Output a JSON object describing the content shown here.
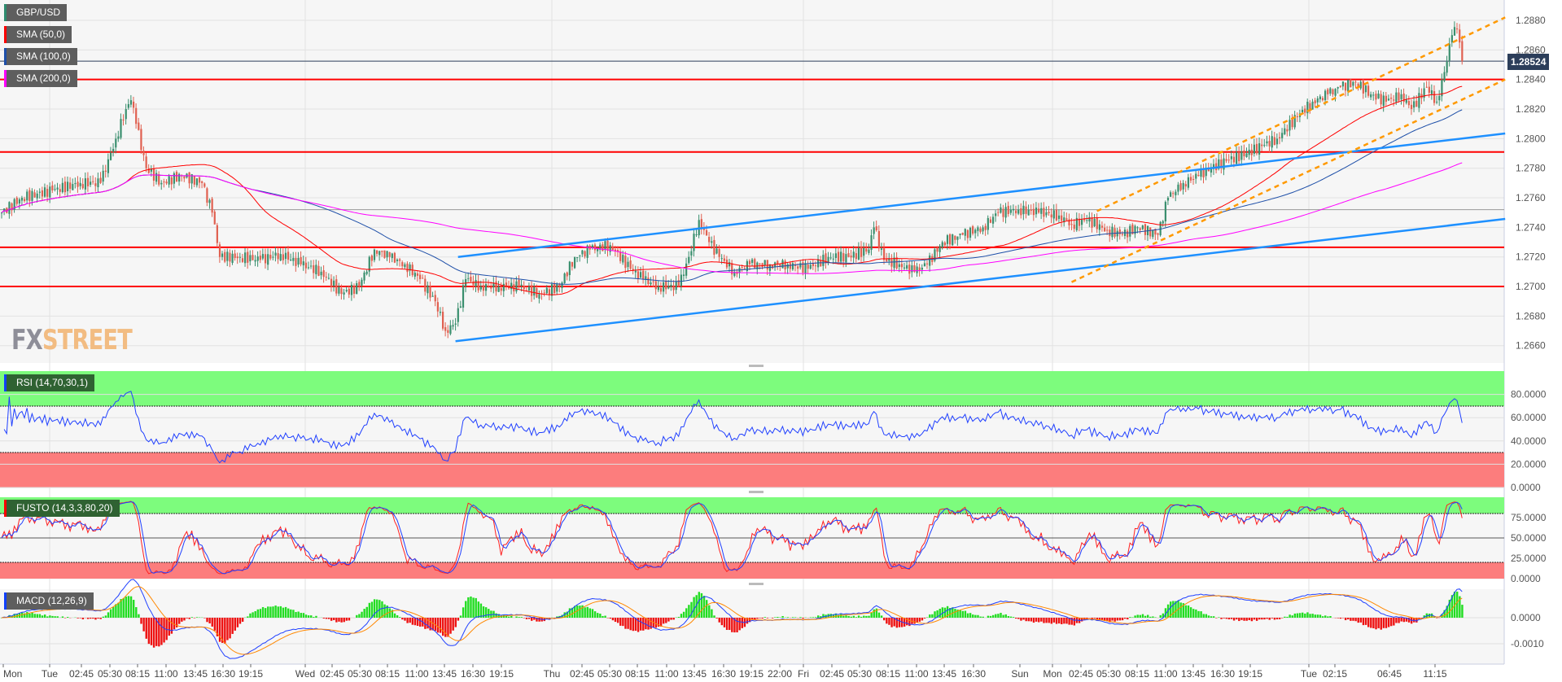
{
  "instrument": {
    "label": "GBP/USD",
    "color": "#2e8b6e"
  },
  "overlays": [
    {
      "label": "SMA (50,0)",
      "period": 50,
      "color": "#ff0000"
    },
    {
      "label": "SMA (100,0)",
      "period": 100,
      "color": "#1e4fa8"
    },
    {
      "label": "SMA (200,0)",
      "period": 200,
      "color": "#ff00ff"
    }
  ],
  "current_price": "1.28524",
  "watermark": {
    "part1": "FX",
    "part2": "STREET"
  },
  "panels": {
    "rsi": {
      "label": "RSI (14,70,30,1)",
      "ticks": [
        "80.0000",
        "60.0000",
        "40.0000",
        "20.0000",
        "0.0000"
      ]
    },
    "fusto": {
      "label": "FUSTO (14,3,3,80,20)",
      "ticks": [
        "75.0000",
        "50.0000",
        "25.0000",
        "0.0000"
      ]
    },
    "macd": {
      "label": "MACD (12,26,9)",
      "ticks": [
        "0.0000",
        "-0.0010"
      ]
    }
  },
  "chart_data": {
    "type": "candlestick",
    "title": "GBP/USD",
    "x_unit": "15-minute bar index",
    "ylim": [
      1.265,
      1.289
    ],
    "y_ticks": [
      "1.2880",
      "1.2860",
      "1.2840",
      "1.2820",
      "1.2800",
      "1.2780",
      "1.2760",
      "1.2740",
      "1.2720",
      "1.2700",
      "1.2680",
      "1.2660"
    ],
    "x_ticks": [
      "Mon",
      "Tue",
      "02:45",
      "05:30",
      "08:15",
      "11:00",
      "13:45",
      "16:30",
      "19:15",
      "Wed",
      "02:45",
      "05:30",
      "08:15",
      "11:00",
      "13:45",
      "16:30",
      "19:15",
      "Thu",
      "02:45",
      "05:30",
      "08:15",
      "11:00",
      "13:45",
      "16:30",
      "19:15",
      "22:00",
      "Fri",
      "02:45",
      "05:30",
      "08:15",
      "11:00",
      "13:45",
      "16:30",
      "Sun",
      "Mon",
      "02:45",
      "05:30",
      "08:15",
      "11:00",
      "13:45",
      "16:30",
      "19:15",
      "Tue",
      "02:15",
      "06:45",
      "11:15"
    ],
    "close_points": [
      [
        0,
        1.275
      ],
      [
        8,
        1.276
      ],
      [
        20,
        1.2765
      ],
      [
        31,
        1.277
      ],
      [
        39,
        1.277
      ],
      [
        45,
        1.28
      ],
      [
        49,
        1.282
      ],
      [
        51,
        1.2826
      ],
      [
        53,
        1.281
      ],
      [
        57,
        1.278
      ],
      [
        63,
        1.277
      ],
      [
        71,
        1.2775
      ],
      [
        79,
        1.277
      ],
      [
        83,
        1.275
      ],
      [
        86,
        1.272
      ],
      [
        94,
        1.272
      ],
      [
        102,
        1.2718
      ],
      [
        110,
        1.2722
      ],
      [
        118,
        1.2715
      ],
      [
        126,
        1.271
      ],
      [
        134,
        1.2695
      ],
      [
        141,
        1.27
      ],
      [
        147,
        1.2725
      ],
      [
        153,
        1.272
      ],
      [
        159,
        1.2715
      ],
      [
        165,
        1.2705
      ],
      [
        171,
        1.269
      ],
      [
        175,
        1.267
      ],
      [
        179,
        1.2675
      ],
      [
        183,
        1.2705
      ],
      [
        189,
        1.27
      ],
      [
        196,
        1.27
      ],
      [
        204,
        1.27
      ],
      [
        212,
        1.2695
      ],
      [
        220,
        1.27
      ],
      [
        226,
        1.272
      ],
      [
        232,
        1.2725
      ],
      [
        240,
        1.2728
      ],
      [
        248,
        1.2712
      ],
      [
        253,
        1.2705
      ],
      [
        259,
        1.27
      ],
      [
        267,
        1.27
      ],
      [
        271,
        1.272
      ],
      [
        275,
        1.2745
      ],
      [
        279,
        1.273
      ],
      [
        283,
        1.272
      ],
      [
        289,
        1.271
      ],
      [
        295,
        1.2715
      ],
      [
        303,
        1.2715
      ],
      [
        310,
        1.2715
      ],
      [
        318,
        1.2712
      ],
      [
        326,
        1.272
      ],
      [
        334,
        1.272
      ],
      [
        342,
        1.2725
      ],
      [
        344,
        1.274
      ],
      [
        348,
        1.2718
      ],
      [
        354,
        1.2715
      ],
      [
        360,
        1.271
      ],
      [
        365,
        1.2715
      ],
      [
        371,
        1.273
      ],
      [
        379,
        1.2735
      ],
      [
        387,
        1.274
      ],
      [
        393,
        1.275
      ],
      [
        401,
        1.2752
      ],
      [
        409,
        1.275
      ],
      [
        417,
        1.2748
      ],
      [
        422,
        1.2742
      ],
      [
        428,
        1.2745
      ],
      [
        436,
        1.2738
      ],
      [
        442,
        1.2735
      ],
      [
        448,
        1.274
      ],
      [
        456,
        1.2735
      ],
      [
        460,
        1.276
      ],
      [
        466,
        1.277
      ],
      [
        472,
        1.2775
      ],
      [
        477,
        1.278
      ],
      [
        483,
        1.2785
      ],
      [
        491,
        1.279
      ],
      [
        497,
        1.2795
      ],
      [
        503,
        1.28
      ],
      [
        511,
        1.2815
      ],
      [
        517,
        1.2825
      ],
      [
        523,
        1.283
      ],
      [
        528,
        1.2835
      ],
      [
        534,
        1.2838
      ],
      [
        540,
        1.283
      ],
      [
        546,
        1.2825
      ],
      [
        552,
        1.283
      ],
      [
        556,
        1.282
      ],
      [
        562,
        1.2835
      ],
      [
        566,
        1.2825
      ],
      [
        569,
        1.2845
      ],
      [
        572,
        1.287
      ],
      [
        574,
        1.2874
      ],
      [
        576,
        1.28524
      ]
    ],
    "horizontal_levels": [
      1.284,
      1.2791,
      1.27265,
      1.27
    ],
    "reference_levels": [
      1.28524,
      1.2752
    ],
    "trendlines": [
      {
        "color": "#1e90ff",
        "style": "solid",
        "from": [
          179,
          1.2663
        ],
        "to": [
          593,
          1.27457
        ]
      },
      {
        "color": "#1e90ff",
        "style": "solid",
        "from": [
          180,
          1.272
        ],
        "to": [
          593,
          1.28035
        ]
      },
      {
        "color": "#ff9900",
        "style": "dashed",
        "from": [
          422,
          1.2703
        ],
        "to": [
          593,
          1.284
        ]
      },
      {
        "color": "#ff9900",
        "style": "dashed",
        "from": [
          432,
          1.2751
        ],
        "to": [
          593,
          1.2882
        ]
      }
    ],
    "up_color": "#3a8f6e",
    "down_color": "#e06050",
    "zone_colors": {
      "overbought": "#7dfc7d",
      "oversold": "#fc7d7d"
    }
  }
}
